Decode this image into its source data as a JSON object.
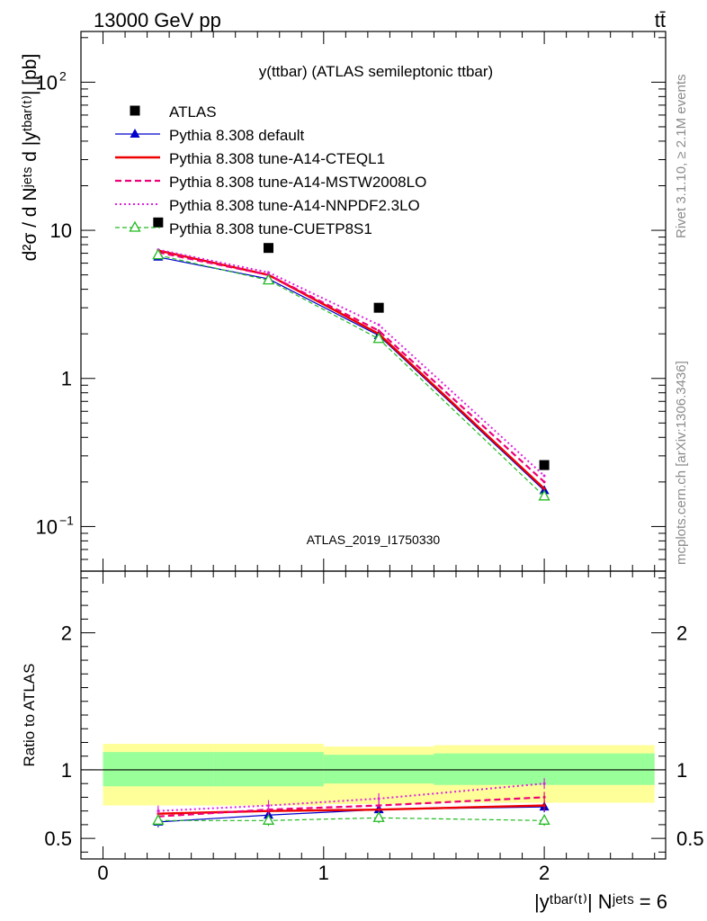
{
  "header": {
    "energy": "13000 GeV pp",
    "process": "tt̄"
  },
  "side": {
    "rivet": "Rivet 3.1.10, ≥ 2.1M events",
    "mcplots": "mcplots.cern.ch [arXiv:1306.3436]"
  },
  "chart_data": [
    {
      "type": "line",
      "title": "y(ttbar) (ATLAS semileptonic ttbar)",
      "watermark": "ATLAS_2019_I1750330",
      "ylabel": "d²σ / d Nʲᵉᵗˢ d |yᵗᵇᵃʳ⁽ᵗ⁾| [pb]",
      "yscale": "log",
      "ylim": [
        0.05,
        220
      ],
      "xlim": [
        -0.1,
        2.55
      ],
      "yticks": [
        {
          "v": 0.1,
          "base": "10",
          "exp": "−1"
        },
        {
          "v": 1,
          "base": "1",
          "exp": ""
        },
        {
          "v": 10,
          "base": "10",
          "exp": ""
        },
        {
          "v": 100,
          "base": "10",
          "exp": "2"
        }
      ],
      "x": [
        0.25,
        0.75,
        1.25,
        2.0
      ],
      "bin_edges": [
        0,
        0.5,
        1.0,
        1.5,
        2.5
      ],
      "legend_position": "top-left",
      "data": {
        "name": "ATLAS",
        "values": [
          11.3,
          7.6,
          3.0,
          0.26
        ],
        "color": "#000000"
      },
      "series": [
        {
          "name": "Pythia 8.308 default",
          "values": [
            6.6,
            4.7,
            1.95,
            0.175
          ],
          "color": "#0000cc",
          "dash": "",
          "width": 1.2,
          "marker": "tri-filled"
        },
        {
          "name": "Pythia 8.308 tune-A14-CTEQL1",
          "values": [
            7.3,
            5.0,
            2.0,
            0.18
          ],
          "color": "#ee0000",
          "dash": "",
          "width": 2.4,
          "marker": "none"
        },
        {
          "name": "Pythia 8.308 tune-A14-MSTW2008LO",
          "values": [
            7.1,
            5.0,
            2.1,
            0.2
          ],
          "color": "#ee0077",
          "dash": "7,4",
          "width": 2.2,
          "marker": "none"
        },
        {
          "name": "Pythia 8.308 tune-A14-NNPDF2.3LO",
          "values": [
            7.4,
            5.2,
            2.3,
            0.22
          ],
          "color": "#dd22dd",
          "dash": "2,3",
          "width": 2.0,
          "marker": "none"
        },
        {
          "name": "Pythia 8.308 tune-CUETP8S1",
          "values": [
            6.8,
            4.6,
            1.85,
            0.16
          ],
          "color": "#22bb22",
          "dash": "5,3",
          "width": 1.2,
          "marker": "tri-open"
        }
      ]
    },
    {
      "type": "line",
      "ylabel": "Ratio to ATLAS",
      "xlabel": "|yᵗᵇᵃʳ⁽ᵗ⁾| Nʲᵉᵗˢ = 6",
      "ylim": [
        0.35,
        2.45
      ],
      "yticks": [
        0.5,
        1,
        2
      ],
      "xticks": [
        0,
        1,
        2
      ],
      "bands": {
        "stat": {
          "color": "#99ff99",
          "lo": [
            0.88,
            0.88,
            0.9,
            0.89
          ],
          "hi": [
            1.13,
            1.13,
            1.11,
            1.12
          ]
        },
        "total": {
          "color": "#ffff99",
          "lo": [
            0.74,
            0.74,
            0.75,
            0.76
          ],
          "hi": [
            1.19,
            1.19,
            1.17,
            1.18
          ]
        }
      },
      "series": [
        {
          "name": "Pythia 8.308 default",
          "values": [
            0.62,
            0.67,
            0.71,
            0.73
          ]
        },
        {
          "name": "Pythia 8.308 tune-A14-CTEQL1",
          "values": [
            0.68,
            0.7,
            0.71,
            0.74
          ]
        },
        {
          "name": "Pythia 8.308 tune-A14-MSTW2008LO",
          "values": [
            0.66,
            0.71,
            0.74,
            0.8
          ]
        },
        {
          "name": "Pythia 8.308 tune-A14-NNPDF2.3LO",
          "values": [
            0.7,
            0.74,
            0.79,
            0.9
          ]
        },
        {
          "name": "Pythia 8.308 tune-CUETP8S1",
          "values": [
            0.63,
            0.63,
            0.65,
            0.63
          ]
        }
      ]
    }
  ]
}
